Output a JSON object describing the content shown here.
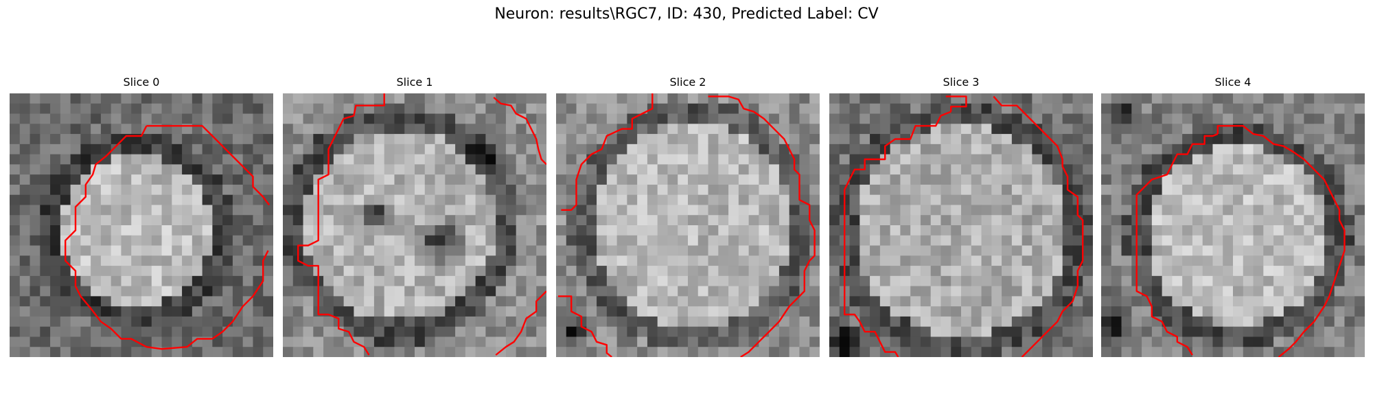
{
  "figure": {
    "title": "Neuron: results\\RGC7, ID: 430, Predicted Label: CV"
  },
  "panels": [
    {
      "title": "Slice 0",
      "contour_color": "#ff0000"
    },
    {
      "title": "Slice 1",
      "contour_color": "#ff0000"
    },
    {
      "title": "Slice 2",
      "contour_color": "#ff0000"
    },
    {
      "title": "Slice 3",
      "contour_color": "#ff0000"
    },
    {
      "title": "Slice 4",
      "contour_color": "#ff0000"
    }
  ]
}
